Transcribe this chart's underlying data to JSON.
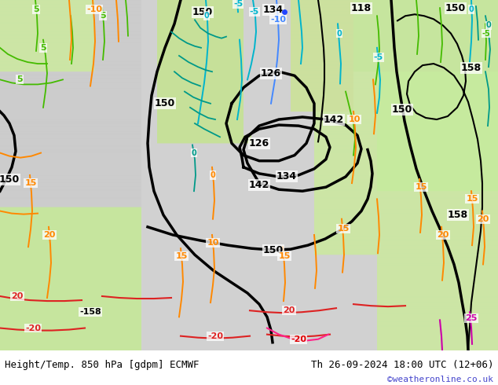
{
  "title_left": "Height/Temp. 850 hPa [gdpm] ECMWF",
  "title_right": "Th 26-09-2024 18:00 UTC (12+06)",
  "credit": "©weatheronline.co.uk",
  "figsize": [
    6.34,
    4.9
  ],
  "dpi": 100,
  "bottom_bar_color": "#e8e8e8",
  "font_color": "#000000",
  "credit_color": "#4444cc",
  "bg_sea": "#c8c8c8",
  "bg_land_light": "#c8eaa0",
  "bg_land_mid": "#b8de8c",
  "bg_land_dark": "#a8d078"
}
